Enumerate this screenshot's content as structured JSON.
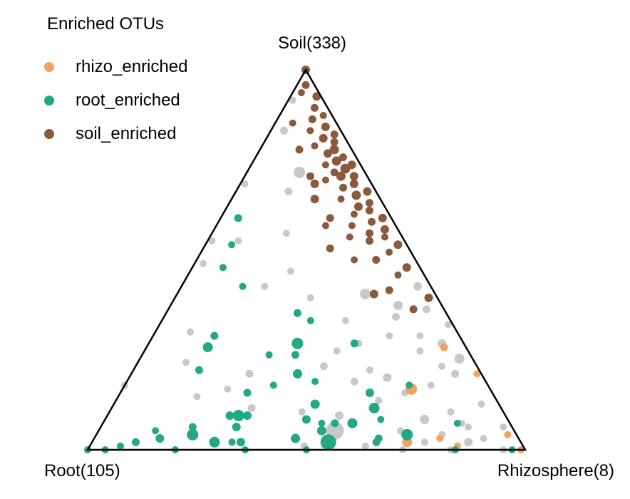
{
  "chart_data": {
    "type": "scatter",
    "subtype": "ternary",
    "title": "",
    "vertices": {
      "top": "Soil(338)",
      "left": "Root(105)",
      "right": "Rhizosphere(8)"
    },
    "legend": {
      "title": "Enriched OTUs",
      "placement": "top-left",
      "entries": [
        {
          "name": "rhizo_enriched",
          "color": "#F4A261"
        },
        {
          "name": "root_enriched",
          "color": "#22A884"
        },
        {
          "name": "soil_enriched",
          "color": "#8B5A3C"
        }
      ]
    },
    "other_color": "#C8C8C8",
    "point_fields": [
      "soil",
      "root",
      "rhizosphere",
      "group",
      "size"
    ],
    "points": [
      [
        1.0,
        0,
        0,
        "soil",
        1.2
      ],
      [
        0.96,
        0.02,
        0.02,
        "soil",
        1.1
      ],
      [
        0.94,
        0.04,
        0.02,
        "soil",
        1.0
      ],
      [
        0.93,
        0.01,
        0.06,
        "soil",
        1.2
      ],
      [
        0.9,
        0.03,
        0.07,
        "soil",
        1.1
      ],
      [
        0.88,
        0.02,
        0.1,
        "soil",
        1.0
      ],
      [
        0.87,
        0.05,
        0.08,
        "soil",
        1.1
      ],
      [
        0.85,
        0.03,
        0.12,
        "soil",
        1.2
      ],
      [
        0.84,
        0.07,
        0.09,
        "soil",
        1.0
      ],
      [
        0.83,
        0.02,
        0.15,
        "soil",
        1.1
      ],
      [
        0.82,
        0.05,
        0.13,
        "soil",
        1.2
      ],
      [
        0.81,
        0.03,
        0.16,
        "soil",
        1.1
      ],
      [
        0.8,
        0.08,
        0.12,
        "soil",
        1.0
      ],
      [
        0.79,
        0.04,
        0.17,
        "soil",
        1.3
      ],
      [
        0.78,
        0.06,
        0.16,
        "soil",
        1.2
      ],
      [
        0.77,
        0.03,
        0.2,
        "soil",
        1.1
      ],
      [
        0.76,
        0.05,
        0.19,
        "soil",
        1.3
      ],
      [
        0.75,
        0.08,
        0.17,
        "soil",
        1.0
      ],
      [
        0.75,
        0.02,
        0.23,
        "soil",
        1.2
      ],
      [
        0.74,
        0.04,
        0.22,
        "soil",
        1.4
      ],
      [
        0.73,
        0.07,
        0.2,
        "soil",
        1.1
      ],
      [
        0.72,
        0.03,
        0.25,
        "soil",
        1.2
      ],
      [
        0.72,
        0.06,
        0.22,
        "soil",
        1.3
      ],
      [
        0.71,
        0.1,
        0.19,
        "soil",
        1.0
      ],
      [
        0.7,
        0.04,
        0.26,
        "soil",
        1.2
      ],
      [
        0.69,
        0.07,
        0.24,
        "soil",
        1.1
      ],
      [
        0.68,
        0.02,
        0.3,
        "soil",
        1.2
      ],
      [
        0.67,
        0.05,
        0.28,
        "soil",
        1.3
      ],
      [
        0.66,
        0.09,
        0.25,
        "soil",
        1.0
      ],
      [
        0.65,
        0.03,
        0.32,
        "soil",
        1.1
      ],
      [
        0.64,
        0.06,
        0.3,
        "soil",
        1.2
      ],
      [
        0.63,
        0.04,
        0.33,
        "soil",
        1.1
      ],
      [
        0.62,
        0.08,
        0.3,
        "soil",
        1.0
      ],
      [
        0.61,
        0.02,
        0.37,
        "soil",
        1.2
      ],
      [
        0.6,
        0.05,
        0.35,
        "soil",
        1.1
      ],
      [
        0.59,
        0.1,
        0.31,
        "soil",
        1.0
      ],
      [
        0.58,
        0.03,
        0.39,
        "soil",
        1.2
      ],
      [
        0.57,
        0.07,
        0.36,
        "soil",
        1.1
      ],
      [
        0.56,
        0.04,
        0.4,
        "soil",
        1.0
      ],
      [
        0.55,
        0.08,
        0.37,
        "soil",
        1.1
      ],
      [
        0.54,
        0.02,
        0.44,
        "soil",
        1.2
      ],
      [
        0.52,
        0.05,
        0.43,
        "soil",
        1.0
      ],
      [
        0.5,
        0.09,
        0.41,
        "soil",
        1.1
      ],
      [
        0.48,
        0.03,
        0.49,
        "soil",
        1.2
      ],
      [
        0.46,
        0.06,
        0.48,
        "soil",
        1.0
      ],
      [
        0.42,
        0.1,
        0.48,
        "soil",
        1.1
      ],
      [
        0.4,
        0.02,
        0.58,
        "soil",
        1.2
      ],
      [
        0.72,
        0.13,
        0.15,
        "soil",
        1.1
      ],
      [
        0.66,
        0.15,
        0.19,
        "soil",
        1.2
      ],
      [
        0.61,
        0.14,
        0.25,
        "soil",
        1.1
      ],
      [
        0.56,
        0.12,
        0.32,
        "soil",
        1.0
      ],
      [
        0.53,
        0.18,
        0.29,
        "soil",
        1.1
      ],
      [
        0.5,
        0.14,
        0.36,
        "soil",
        1.0
      ],
      [
        0.86,
        0.1,
        0.04,
        "soil",
        1.0
      ],
      [
        0.79,
        0.12,
        0.09,
        "soil",
        1.1
      ],
      [
        0.7,
        0.13,
        0.17,
        "soil",
        1.2
      ],
      [
        0.59,
        0.16,
        0.25,
        "soil",
        1.0
      ],
      [
        0.41,
        0.14,
        0.45,
        "soil",
        1.2
      ],
      [
        0.37,
        0.07,
        0.56,
        "soil",
        1.1
      ],
      [
        0.92,
        0.07,
        0.01,
        "other",
        1.0
      ],
      [
        0.84,
        0.13,
        0.03,
        "other",
        1.1
      ],
      [
        0.7,
        0.29,
        0.01,
        "other",
        1.0
      ],
      [
        0.61,
        0.35,
        0.04,
        "other",
        1.0
      ],
      [
        0.55,
        0.44,
        0.01,
        "other",
        1.0
      ],
      [
        0.49,
        0.49,
        0.02,
        "other",
        1.0
      ],
      [
        0.73,
        0.15,
        0.12,
        "other",
        1.6
      ],
      [
        0.68,
        0.2,
        0.12,
        "other",
        1.1
      ],
      [
        0.57,
        0.26,
        0.17,
        "other",
        1.0
      ],
      [
        0.55,
        0.38,
        0.07,
        "other",
        1.0
      ],
      [
        0.47,
        0.3,
        0.23,
        "other",
        1.0
      ],
      [
        0.41,
        0.16,
        0.43,
        "other",
        1.5
      ],
      [
        0.43,
        0.03,
        0.54,
        "other",
        1.2
      ],
      [
        0.38,
        0.1,
        0.52,
        "other",
        1.3
      ],
      [
        0.37,
        0.04,
        0.59,
        "other",
        1.1
      ],
      [
        0.35,
        0.12,
        0.53,
        "other",
        1.1
      ],
      [
        0.33,
        0.01,
        0.66,
        "other",
        1.0
      ],
      [
        0.3,
        0.09,
        0.61,
        "other",
        1.0
      ],
      [
        0.28,
        0.05,
        0.67,
        "other",
        1.2
      ],
      [
        0.26,
        0.11,
        0.63,
        "other",
        1.0
      ],
      [
        0.24,
        0.03,
        0.73,
        "other",
        1.4
      ],
      [
        0.22,
        0.08,
        0.7,
        "other",
        1.0
      ],
      [
        0.2,
        0.06,
        0.74,
        "other",
        1.1
      ],
      [
        0.34,
        0.24,
        0.42,
        "other",
        1.0
      ],
      [
        0.3,
        0.16,
        0.54,
        "other",
        1.0
      ],
      [
        0.28,
        0.24,
        0.48,
        "other",
        1.0
      ],
      [
        0.26,
        0.3,
        0.44,
        "other",
        1.0
      ],
      [
        0.43,
        0.38,
        0.19,
        "other",
        1.0
      ],
      [
        0.4,
        0.29,
        0.31,
        "other",
        1.0
      ],
      [
        0.22,
        0.35,
        0.43,
        "other",
        1.1
      ],
      [
        0.21,
        0.25,
        0.54,
        "other",
        1.0
      ],
      [
        0.19,
        0.22,
        0.59,
        "other",
        1.2
      ],
      [
        0.18,
        0.3,
        0.52,
        "other",
        1.1
      ],
      [
        0.17,
        0.13,
        0.7,
        "other",
        1.0
      ],
      [
        0.15,
        0.2,
        0.65,
        "other",
        1.0
      ],
      [
        0.13,
        0.27,
        0.6,
        "other",
        1.0
      ],
      [
        0.12,
        0.04,
        0.84,
        "other",
        1.0
      ],
      [
        0.1,
        0.46,
        0.44,
        "other",
        1.0
      ],
      [
        0.09,
        0.38,
        0.53,
        "other",
        1.2
      ],
      [
        0.08,
        0.19,
        0.73,
        "other",
        1.3
      ],
      [
        0.07,
        0.11,
        0.82,
        "other",
        1.0
      ],
      [
        0.06,
        0.02,
        0.92,
        "other",
        1.0
      ],
      [
        0.05,
        0.26,
        0.69,
        "other",
        1.0
      ],
      [
        0.05,
        0.41,
        0.54,
        "other",
        2.5
      ],
      [
        0.04,
        0.17,
        0.79,
        "other",
        1.0
      ],
      [
        0.03,
        0.08,
        0.89,
        "other",
        1.0
      ],
      [
        0.02,
        0.22,
        0.76,
        "other",
        1.0
      ],
      [
        0.01,
        0.5,
        0.49,
        "other",
        1.0
      ],
      [
        0.02,
        0.66,
        0.32,
        "other",
        1.0
      ],
      [
        0.01,
        0.36,
        0.63,
        "other",
        1.0
      ],
      [
        0.0,
        0.28,
        0.72,
        "other",
        1.0
      ],
      [
        0.0,
        0.17,
        0.83,
        "other",
        1.0
      ],
      [
        0.0,
        0.05,
        0.95,
        "other",
        1.0
      ],
      [
        0.16,
        0.6,
        0.24,
        "other",
        1.0
      ],
      [
        0.11,
        0.57,
        0.32,
        "other",
        1.1
      ],
      [
        0.14,
        0.68,
        0.18,
        "other",
        1.0
      ],
      [
        0.2,
        0.53,
        0.27,
        "other",
        1.1
      ],
      [
        0.23,
        0.66,
        0.11,
        "other",
        1.0
      ],
      [
        0.31,
        0.61,
        0.08,
        "other",
        1.0
      ],
      [
        0.17,
        0.83,
        0.0,
        "other",
        1.0
      ],
      [
        0.06,
        0.1,
        0.84,
        "other",
        1.0
      ],
      [
        0.02,
        0.12,
        0.86,
        "other",
        1.2
      ],
      [
        0.1,
        0.12,
        0.78,
        "other",
        1.0
      ],
      [
        0.02,
        0.26,
        0.72,
        "rhizo",
        1.4
      ],
      [
        0.03,
        0.18,
        0.79,
        "rhizo",
        1.0
      ],
      [
        0.01,
        0.15,
        0.84,
        "rhizo",
        1.0
      ],
      [
        0.16,
        0.18,
        0.66,
        "rhizo",
        1.6
      ],
      [
        0.27,
        0.05,
        0.68,
        "rhizo",
        1.1
      ],
      [
        0.2,
        0.01,
        0.79,
        "rhizo",
        1.0
      ],
      [
        0.04,
        0.02,
        0.94,
        "rhizo",
        1.0
      ],
      [
        0.0,
        0.01,
        0.99,
        "rhizo",
        1.0
      ],
      [
        0.61,
        0.35,
        0.04,
        "root",
        1.1
      ],
      [
        0.54,
        0.4,
        0.06,
        "root",
        1.0
      ],
      [
        0.48,
        0.45,
        0.07,
        "root",
        1.0
      ],
      [
        0.43,
        0.43,
        0.14,
        "root",
        1.0
      ],
      [
        0.36,
        0.34,
        0.3,
        "root",
        1.1
      ],
      [
        0.34,
        0.32,
        0.34,
        "root",
        1.0
      ],
      [
        0.3,
        0.56,
        0.14,
        "root",
        1.1
      ],
      [
        0.27,
        0.59,
        0.14,
        "root",
        1.4
      ],
      [
        0.28,
        0.25,
        0.47,
        "root",
        1.1
      ],
      [
        0.25,
        0.46,
        0.29,
        "root",
        1.0
      ],
      [
        0.28,
        0.38,
        0.34,
        "root",
        1.6
      ],
      [
        0.25,
        0.4,
        0.35,
        "root",
        1.1
      ],
      [
        0.21,
        0.64,
        0.15,
        "root",
        1.1
      ],
      [
        0.2,
        0.42,
        0.38,
        "root",
        1.3
      ],
      [
        0.17,
        0.49,
        0.34,
        "root",
        1.0
      ],
      [
        0.18,
        0.39,
        0.43,
        "root",
        1.0
      ],
      [
        0.17,
        0.18,
        0.65,
        "root",
        1.0
      ],
      [
        0.15,
        0.28,
        0.57,
        "root",
        1.2
      ],
      [
        0.15,
        0.56,
        0.29,
        "root",
        1.1
      ],
      [
        0.12,
        0.42,
        0.46,
        "root",
        1.3
      ],
      [
        0.11,
        0.29,
        0.6,
        "root",
        1.5
      ],
      [
        0.09,
        0.61,
        0.3,
        "root",
        1.6
      ],
      [
        0.09,
        0.59,
        0.32,
        "root",
        1.2
      ],
      [
        0.09,
        0.63,
        0.28,
        "root",
        1.2
      ],
      [
        0.08,
        0.29,
        0.63,
        "root",
        1.0
      ],
      [
        0.08,
        0.46,
        0.46,
        "root",
        1.2
      ],
      [
        0.07,
        0.12,
        0.81,
        "root",
        1.0
      ],
      [
        0.07,
        0.36,
        0.57,
        "root",
        1.4
      ],
      [
        0.07,
        0.4,
        0.53,
        "root",
        1.1
      ],
      [
        0.06,
        0.63,
        0.31,
        "root",
        1.2
      ],
      [
        0.06,
        0.73,
        0.21,
        "root",
        1.1
      ],
      [
        0.05,
        0.44,
        0.51,
        "root",
        1.3
      ],
      [
        0.04,
        0.74,
        0.22,
        "root",
        1.6
      ],
      [
        0.04,
        0.25,
        0.71,
        "root",
        1.6
      ],
      [
        0.03,
        0.82,
        0.15,
        "root",
        1.2
      ],
      [
        0.03,
        0.51,
        0.46,
        "root",
        1.3
      ],
      [
        0.03,
        0.32,
        0.65,
        "root",
        1.1
      ],
      [
        0.02,
        0.88,
        0.1,
        "root",
        1.1
      ],
      [
        0.02,
        0.66,
        0.32,
        "root",
        1.0
      ],
      [
        0.02,
        0.7,
        0.28,
        "root",
        1.5
      ],
      [
        0.02,
        0.33,
        0.65,
        "root",
        1.1
      ],
      [
        0.02,
        0.44,
        0.54,
        "root",
        2.2
      ],
      [
        0.02,
        0.64,
        0.34,
        "root",
        1.2
      ],
      [
        0.01,
        0.92,
        0.07,
        "root",
        1.0
      ],
      [
        0.0,
        1.0,
        0.0,
        "root",
        1.0
      ],
      [
        0.0,
        0.96,
        0.04,
        "root",
        1.0
      ],
      [
        0.0,
        0.5,
        0.5,
        "root",
        1.0
      ],
      [
        0.0,
        0.64,
        0.36,
        "root",
        1.0
      ],
      [
        0.0,
        0.8,
        0.2,
        "root",
        1.0
      ],
      [
        0.0,
        0.16,
        0.84,
        "root",
        1.0
      ],
      [
        0.0,
        0.03,
        0.97,
        "root",
        1.0
      ],
      [
        0.05,
        0.82,
        0.13,
        "root",
        1.0
      ],
      [
        0.07,
        0.43,
        0.5,
        "root",
        1.0
      ]
    ]
  }
}
